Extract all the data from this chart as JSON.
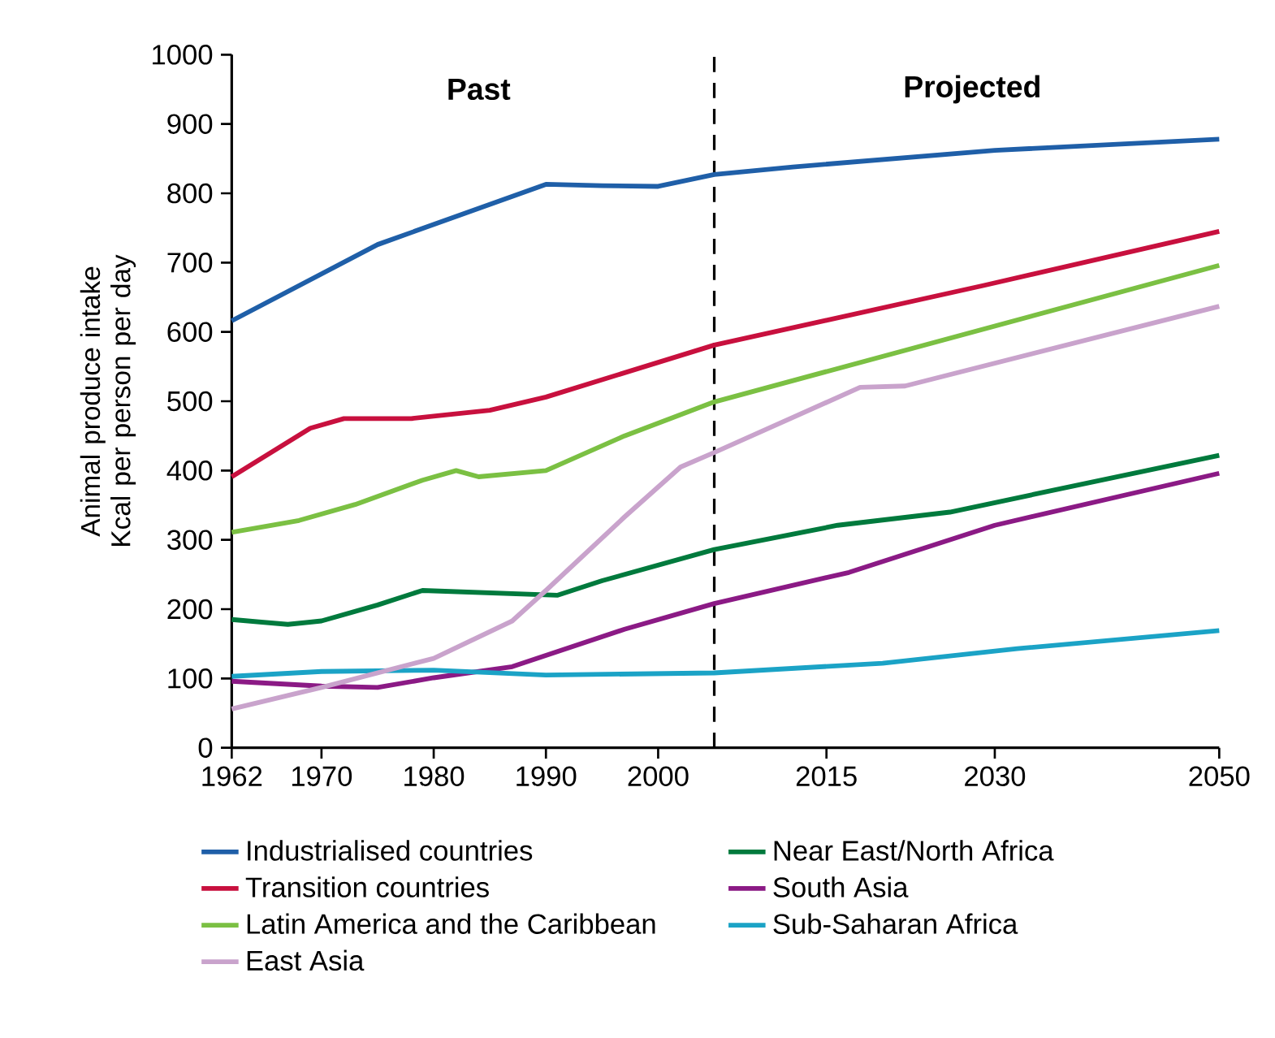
{
  "chart_data": {
    "type": "line",
    "ylabel": "Animal produce intake Kcal per person per day",
    "xlim": [
      1962,
      2050
    ],
    "xticks": [
      1962,
      1970,
      1980,
      1990,
      2000,
      2015,
      2030,
      2050
    ],
    "ylim": [
      0,
      1000
    ],
    "yticks": [
      0,
      100,
      200,
      300,
      400,
      500,
      600,
      700,
      800,
      900,
      1000
    ],
    "grid": false,
    "legend": "bottom",
    "line_style": "solid",
    "marker": "none",
    "annotations": [
      "Past",
      "Projected"
    ],
    "ref_lines": [
      {
        "axis": "x",
        "value": 2005,
        "color": "#000000",
        "line_style": "dashed"
      }
    ],
    "series": [
      {
        "name": "Industrialised countries",
        "color": "#1f5fa8",
        "x": [
          1962,
          1975,
          1990,
          1995,
          2000,
          2005,
          2012,
          2030,
          2050
        ],
        "values": [
          616,
          726,
          813,
          811,
          810,
          827,
          838,
          862,
          878
        ]
      },
      {
        "name": "Near East/North Africa",
        "color": "#007a3d",
        "x": [
          1962,
          1967,
          1970,
          1975,
          1979,
          1991,
          1995,
          2005,
          2016,
          2026,
          2050
        ],
        "values": [
          185,
          178,
          183,
          206,
          227,
          220,
          241,
          286,
          321,
          340,
          422
        ]
      },
      {
        "name": "Transition countries",
        "color": "#c8103e",
        "x": [
          1962,
          1969,
          1972,
          1978,
          1985,
          1990,
          2005,
          2029,
          2050
        ],
        "values": [
          391,
          461,
          475,
          475,
          487,
          506,
          581,
          667,
          745
        ]
      },
      {
        "name": "South Asia",
        "color": "#8b1a85",
        "x": [
          1962,
          1970,
          1975,
          1980,
          1987,
          1997,
          2005,
          2017,
          2030,
          2050
        ],
        "values": [
          96,
          89,
          87,
          101,
          117,
          171,
          208,
          253,
          321,
          396
        ]
      },
      {
        "name": "Latin America and the Caribbean",
        "color": "#7bc043",
        "x": [
          1962,
          1968,
          1973,
          1979,
          1982,
          1984,
          1990,
          1997,
          2005,
          2050
        ],
        "values": [
          311,
          328,
          351,
          386,
          400,
          391,
          400,
          450,
          499,
          696
        ]
      },
      {
        "name": "Sub-Saharan Africa",
        "color": "#1ba3c6",
        "x": [
          1962,
          1970,
          1980,
          1990,
          2005,
          2020,
          2032,
          2050
        ],
        "values": [
          103,
          110,
          112,
          105,
          108,
          122,
          143,
          169
        ]
      },
      {
        "name": "East Asia",
        "color": "#c9a3cc",
        "x": [
          1962,
          1970,
          1980,
          1987,
          1990,
          1997,
          2002,
          2005,
          2018,
          2022,
          2050
        ],
        "values": [
          56,
          87,
          129,
          183,
          227,
          333,
          405,
          426,
          520,
          522,
          637
        ]
      }
    ]
  }
}
